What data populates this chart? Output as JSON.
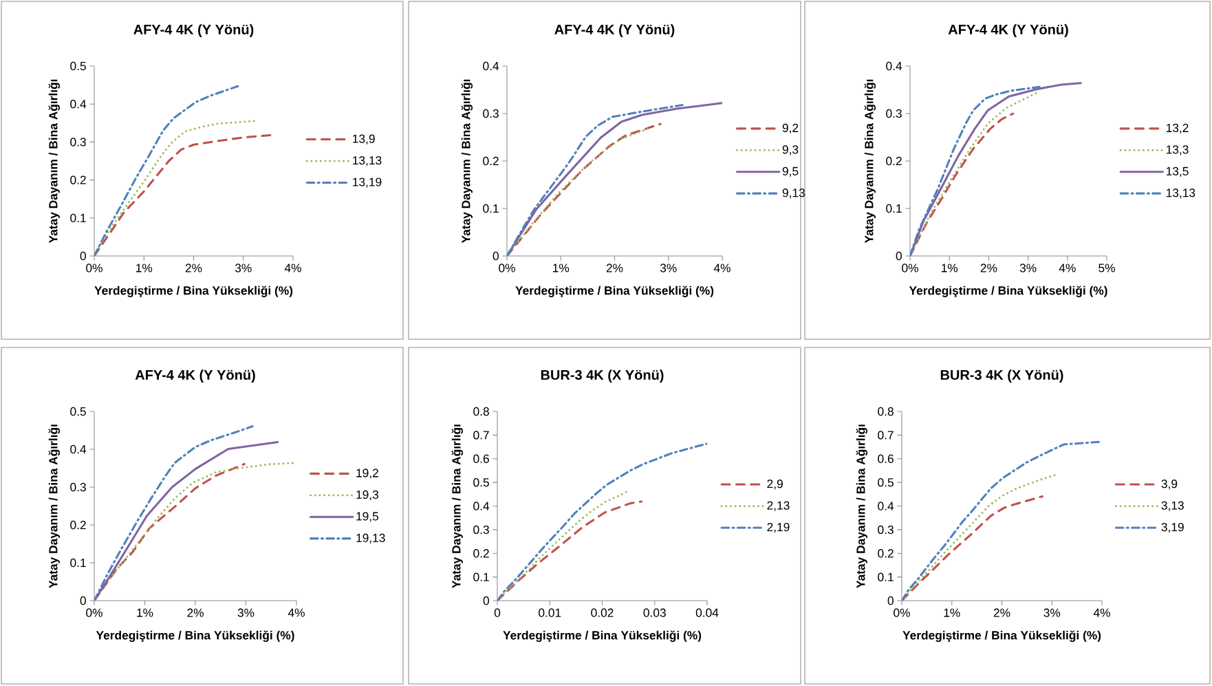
{
  "chart_data": [
    {
      "type": "line",
      "title": "**AFY-4  4K  (Y Yönü)**",
      "xlabel": "Yerdegiştirme / Bina Yüksekliği (%)",
      "ylabel": "Yatay Dayanım / Bina Ağırlığı",
      "xlim": [
        0,
        0.04
      ],
      "xticks": [
        {
          "value": 0,
          "label": "0%"
        },
        {
          "value": 0.01,
          "label": "1%"
        },
        {
          "value": 0.02,
          "label": "2%"
        },
        {
          "value": 0.03,
          "label": "3%"
        },
        {
          "value": 0.04,
          "label": "4%"
        }
      ],
      "ylim": [
        0,
        0.5
      ],
      "yticks": [
        0,
        0.1,
        0.2,
        0.3,
        0.4,
        0.5
      ],
      "legend": "right",
      "series": [
        {
          "name": "13,9",
          "color": "#c0504d",
          "line_style": "dashed",
          "x": [
            0,
            0.006,
            0.01,
            0.015,
            0.0175,
            0.02,
            0.025,
            0.03,
            0.0355
          ],
          "values": [
            0,
            0.115,
            0.17,
            0.25,
            0.28,
            0.293,
            0.303,
            0.312,
            0.318
          ]
        },
        {
          "name": "13,13",
          "color": "#9bbb59",
          "line_style": "dotted",
          "x": [
            0,
            0.0023,
            0.0062,
            0.01,
            0.0137,
            0.0157,
            0.0183,
            0.0213,
            0.0245,
            0.0326
          ],
          "values": [
            0,
            0.054,
            0.127,
            0.196,
            0.268,
            0.3,
            0.328,
            0.339,
            0.348,
            0.356
          ]
        },
        {
          "name": "13,19",
          "color": "#4f81bd",
          "line_style": "dashdot",
          "x": [
            0,
            0.0025,
            0.0053,
            0.0083,
            0.0111,
            0.0139,
            0.016,
            0.0204,
            0.0236,
            0.0289
          ],
          "values": [
            0,
            0.065,
            0.13,
            0.203,
            0.266,
            0.331,
            0.363,
            0.405,
            0.423,
            0.447
          ]
        }
      ]
    },
    {
      "type": "line",
      "title": "**AFY-4  4K  (Y Yönü)**",
      "xlabel": "Yerdegiştirme / Bina Yüksekliği (%)",
      "ylabel": "Yatay Dayanım / Bina Ağırlığı",
      "xlim": [
        0,
        0.04
      ],
      "xticks": [
        {
          "value": 0,
          "label": "0%"
        },
        {
          "value": 0.01,
          "label": "1%"
        },
        {
          "value": 0.02,
          "label": "2%"
        },
        {
          "value": 0.03,
          "label": "3%"
        },
        {
          "value": 0.04,
          "label": "4%"
        }
      ],
      "ylim": [
        0,
        0.4
      ],
      "yticks": [
        0,
        0.1,
        0.2,
        0.3,
        0.4
      ],
      "legend": "right",
      "series": [
        {
          "name": "9,2",
          "color": "#c0504d",
          "line_style": "dashed",
          "x": [
            0,
            0.0064,
            0.014,
            0.0191,
            0.0221,
            0.0285
          ],
          "values": [
            0,
            0.089,
            0.181,
            0.232,
            0.254,
            0.278
          ]
        },
        {
          "name": "9,3",
          "color": "#9bbb59",
          "line_style": "dotted",
          "x": [
            0,
            0.0047,
            0.0096,
            0.016,
            0.0209,
            0.0264
          ],
          "values": [
            0,
            0.068,
            0.133,
            0.203,
            0.245,
            0.269
          ]
        },
        {
          "name": "9,5",
          "color": "#8064a2",
          "line_style": "solid",
          "x": [
            0,
            0.0055,
            0.011,
            0.0174,
            0.0213,
            0.0251,
            0.0315,
            0.04
          ],
          "values": [
            0,
            0.099,
            0.169,
            0.249,
            0.283,
            0.297,
            0.31,
            0.322
          ]
        },
        {
          "name": "9,13",
          "color": "#4f81bd",
          "line_style": "dashdot",
          "x": [
            0,
            0.0026,
            0.0051,
            0.01,
            0.0119,
            0.0147,
            0.0168,
            0.0196,
            0.0245,
            0.0326
          ],
          "values": [
            0,
            0.051,
            0.099,
            0.173,
            0.203,
            0.252,
            0.274,
            0.293,
            0.303,
            0.318
          ]
        }
      ]
    },
    {
      "type": "line",
      "title": "**AFY-4  4K  (Y Yönü)**",
      "xlabel": "Yerdegiştirme / Bina Yüksekliği (%)",
      "ylabel": "Yatay Dayanım / Bina Ağırlığı",
      "xlim": [
        0,
        0.05
      ],
      "xticks": [
        {
          "value": 0,
          "label": "0%"
        },
        {
          "value": 0.01,
          "label": "1%"
        },
        {
          "value": 0.02,
          "label": "2%"
        },
        {
          "value": 0.03,
          "label": "3%"
        },
        {
          "value": 0.04,
          "label": "4%"
        },
        {
          "value": 0.05,
          "label": "5%"
        }
      ],
      "ylim": [
        0,
        0.4
      ],
      "yticks": [
        0,
        0.1,
        0.2,
        0.3,
        0.4
      ],
      "legend": "right",
      "series": [
        {
          "name": "13,2",
          "color": "#c0504d",
          "line_style": "dashed",
          "x": [
            0,
            0.0041,
            0.0082,
            0.0117,
            0.016,
            0.0204,
            0.0233,
            0.0262
          ],
          "values": [
            0,
            0.068,
            0.123,
            0.172,
            0.225,
            0.268,
            0.288,
            0.3
          ]
        },
        {
          "name": "13,3",
          "color": "#9bbb59",
          "line_style": "dotted",
          "x": [
            0,
            0.0052,
            0.0096,
            0.0152,
            0.0198,
            0.0245,
            0.0286,
            0.0321
          ],
          "values": [
            0,
            0.089,
            0.15,
            0.225,
            0.279,
            0.312,
            0.329,
            0.343
          ]
        },
        {
          "name": "13,5",
          "color": "#8064a2",
          "line_style": "solid",
          "x": [
            0,
            0.0035,
            0.0076,
            0.0122,
            0.0163,
            0.0198,
            0.0251,
            0.0321,
            0.0385,
            0.0434
          ],
          "values": [
            0,
            0.075,
            0.138,
            0.21,
            0.266,
            0.307,
            0.336,
            0.351,
            0.361,
            0.364
          ]
        },
        {
          "name": "13,13",
          "color": "#4f81bd",
          "line_style": "dashdot",
          "x": [
            0,
            0.0023,
            0.007,
            0.0111,
            0.0143,
            0.0161,
            0.0192,
            0.0219,
            0.0256,
            0.0329
          ],
          "values": [
            0,
            0.056,
            0.14,
            0.225,
            0.281,
            0.307,
            0.332,
            0.34,
            0.348,
            0.356
          ]
        }
      ]
    },
    {
      "type": "line",
      "title": "**AFY-4  4K  (Y Yönü)**",
      "xlabel": "Yerdegiştirme / Bina Yüksekliği (%)",
      "ylabel": "Yatay Dayanım / Bina Ağırlığı",
      "xlim": [
        0,
        0.04
      ],
      "xticks": [
        {
          "value": 0,
          "label": "0%"
        },
        {
          "value": 0.01,
          "label": "1%"
        },
        {
          "value": 0.02,
          "label": "2%"
        },
        {
          "value": 0.03,
          "label": "3%"
        },
        {
          "value": 0.04,
          "label": "4%"
        }
      ],
      "ylim": [
        0,
        0.5
      ],
      "yticks": [
        0,
        0.1,
        0.2,
        0.3,
        0.4,
        0.5
      ],
      "legend": "right",
      "series": [
        {
          "name": "19,2",
          "color": "#c0504d",
          "line_style": "dashed",
          "x": [
            0,
            0.0045,
            0.0075,
            0.0109,
            0.0159,
            0.02,
            0.024,
            0.0297
          ],
          "values": [
            0,
            0.085,
            0.127,
            0.191,
            0.248,
            0.297,
            0.33,
            0.361
          ]
        },
        {
          "name": "19,3",
          "color": "#9bbb59",
          "line_style": "dotted",
          "x": [
            0,
            0.0036,
            0.0086,
            0.0127,
            0.0159,
            0.0195,
            0.024,
            0.0286,
            0.0349,
            0.0399
          ],
          "values": [
            0,
            0.067,
            0.152,
            0.221,
            0.27,
            0.312,
            0.339,
            0.35,
            0.361,
            0.364
          ]
        },
        {
          "name": "19,5",
          "color": "#8064a2",
          "line_style": "solid",
          "x": [
            0,
            0.0032,
            0.0068,
            0.0104,
            0.0154,
            0.02,
            0.0265,
            0.0363
          ],
          "values": [
            0,
            0.067,
            0.145,
            0.224,
            0.3,
            0.348,
            0.401,
            0.419
          ]
        },
        {
          "name": "19,13",
          "color": "#4f81bd",
          "line_style": "dashdot",
          "x": [
            0,
            0.0025,
            0.0052,
            0.0086,
            0.0111,
            0.0141,
            0.0159,
            0.02,
            0.0231,
            0.0286,
            0.0313
          ],
          "values": [
            0,
            0.067,
            0.133,
            0.212,
            0.267,
            0.33,
            0.364,
            0.406,
            0.424,
            0.448,
            0.461
          ]
        }
      ]
    },
    {
      "type": "line",
      "title": "**BUR-3  4K  (X Yönü)**",
      "xlabel": "Yerdegiştirme / Bina Yüksekliği (%)",
      "ylabel": "Yatay Dayanım / Bina Ağırlığı",
      "xlim": [
        0,
        0.04
      ],
      "xticks": [
        0,
        0.01,
        0.02,
        0.03,
        0.04
      ],
      "ylim": [
        0,
        0.8
      ],
      "yticks": [
        0,
        0.1,
        0.2,
        0.3,
        0.4,
        0.5,
        0.6,
        0.7,
        0.8
      ],
      "legend": "right",
      "series": [
        {
          "name": "2,9",
          "color": "#c0504d",
          "line_style": "dashed",
          "x": [
            0,
            0.0039,
            0.0079,
            0.012,
            0.0162,
            0.0205,
            0.0254,
            0.0275
          ],
          "values": [
            0,
            0.082,
            0.16,
            0.233,
            0.31,
            0.373,
            0.412,
            0.419
          ]
        },
        {
          "name": "2,13",
          "color": "#9bbb59",
          "line_style": "dotted",
          "x": [
            0,
            0.0022,
            0.0055,
            0.0087,
            0.0122,
            0.0155,
            0.0179,
            0.0205,
            0.0234,
            0.0247
          ],
          "values": [
            0,
            0.05,
            0.121,
            0.194,
            0.267,
            0.335,
            0.378,
            0.417,
            0.446,
            0.461
          ]
        },
        {
          "name": "2,19",
          "color": "#4f81bd",
          "line_style": "dashdot",
          "x": [
            0,
            0.0013,
            0.0035,
            0.007,
            0.009,
            0.0127,
            0.0146,
            0.0186,
            0.0208,
            0.0254,
            0.028,
            0.0332,
            0.036,
            0.04
          ],
          "values": [
            0,
            0.039,
            0.09,
            0.179,
            0.23,
            0.318,
            0.366,
            0.448,
            0.489,
            0.551,
            0.579,
            0.623,
            0.64,
            0.664
          ]
        }
      ]
    },
    {
      "type": "line",
      "title": "**BUR-3  4K  (X Yönü)**",
      "xlabel": "Yerdegiştirme / Bina Yüksekliği (%)",
      "ylabel": "Yatay Dayanım / Bina Ağırlığı",
      "xlim": [
        0,
        0.04
      ],
      "xticks": [
        {
          "value": 0,
          "label": "0%"
        },
        {
          "value": 0.01,
          "label": "1%"
        },
        {
          "value": 0.02,
          "label": "2%"
        },
        {
          "value": 0.03,
          "label": "3%"
        },
        {
          "value": 0.04,
          "label": "4%"
        }
      ],
      "ylim": [
        0,
        0.8
      ],
      "yticks": [
        0,
        0.1,
        0.2,
        0.3,
        0.4,
        0.5,
        0.6,
        0.7,
        0.8
      ],
      "legend": "right",
      "series": [
        {
          "name": "3,9",
          "color": "#c0504d",
          "line_style": "dashed",
          "x": [
            0,
            0.0038,
            0.0056,
            0.0095,
            0.0139,
            0.0178,
            0.0205,
            0.0228,
            0.0281
          ],
          "values": [
            0,
            0.082,
            0.118,
            0.199,
            0.281,
            0.359,
            0.393,
            0.409,
            0.441
          ]
        },
        {
          "name": "3,13",
          "color": "#9bbb59",
          "line_style": "dotted",
          "x": [
            0,
            0.0021,
            0.0054,
            0.0086,
            0.0131,
            0.0175,
            0.0201,
            0.023,
            0.0276,
            0.0307
          ],
          "values": [
            0,
            0.053,
            0.128,
            0.204,
            0.305,
            0.403,
            0.444,
            0.475,
            0.511,
            0.532
          ]
        },
        {
          "name": "3,19",
          "color": "#4f81bd",
          "line_style": "dashdot",
          "x": [
            0,
            0.0013,
            0.0033,
            0.0068,
            0.0088,
            0.0121,
            0.0142,
            0.0178,
            0.0202,
            0.0249,
            0.0276,
            0.0324,
            0.036,
            0.04
          ],
          "values": [
            0,
            0.044,
            0.094,
            0.189,
            0.24,
            0.333,
            0.383,
            0.475,
            0.519,
            0.584,
            0.613,
            0.661,
            0.666,
            0.672
          ]
        }
      ]
    }
  ]
}
